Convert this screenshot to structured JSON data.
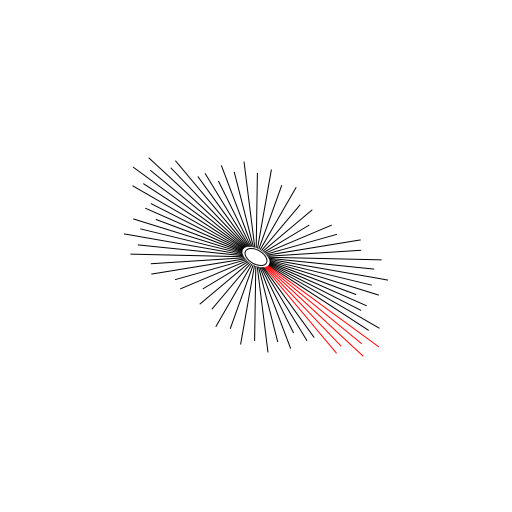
{
  "scene": {
    "background_color": "#ffffff",
    "line_color": "#000000",
    "highlight_color": "#ff0000",
    "hub_fill": "#ffffff",
    "hub_stroke": "#000000",
    "spoke_count": 64,
    "highlighted_spoke_count": 5
  }
}
